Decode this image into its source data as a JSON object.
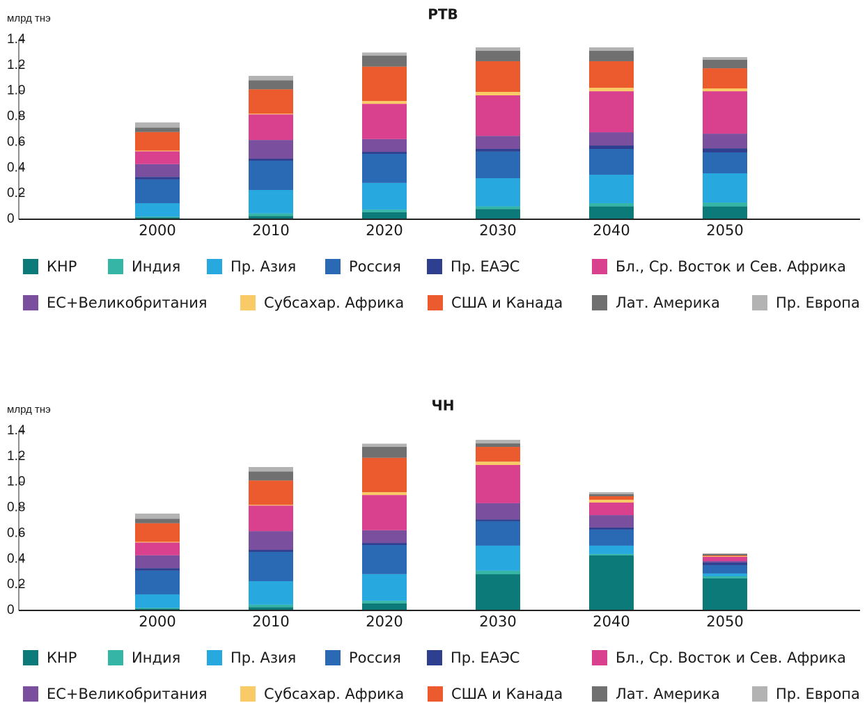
{
  "chart_data": [
    {
      "type": "bar",
      "stacked": true,
      "title": "РТВ",
      "y_label": "млрд тнэ",
      "categories": [
        "2000",
        "2010",
        "2020",
        "2030",
        "2040",
        "2050"
      ],
      "ylim": [
        0,
        1.4
      ],
      "yticks": [
        0,
        0.2,
        0.4,
        0.6,
        0.8,
        {
          "value": 1,
          "label": "1.0"
        },
        1.2,
        1.4
      ],
      "series": [
        {
          "name": "КНР",
          "color": "#0b7a78",
          "values": [
            0.015,
            0.025,
            0.055,
            0.08,
            0.1,
            0.1
          ]
        },
        {
          "name": "Индия",
          "color": "#35b5a6",
          "values": [
            0.005,
            0.02,
            0.02,
            0.02,
            0.025,
            0.03
          ]
        },
        {
          "name": "Пр. Азия",
          "color": "#27a8de",
          "values": [
            0.105,
            0.183,
            0.208,
            0.22,
            0.222,
            0.228
          ]
        },
        {
          "name": "Россия",
          "color": "#2a6ab5",
          "values": [
            0.185,
            0.228,
            0.227,
            0.207,
            0.201,
            0.163
          ]
        },
        {
          "name": "Пр. ЕАЭС",
          "color": "#2e3f8f",
          "values": [
            0.02,
            0.016,
            0.016,
            0.021,
            0.027,
            0.032
          ]
        },
        {
          "name": "Бл., Ср. Восток и Сев. Африка",
          "color": "#d9418f",
          "values": [
            0.1,
            0.2,
            0.275,
            0.316,
            0.32,
            0.331
          ]
        },
        {
          "name": "ЕС+Великобритания",
          "color": "#7a4f9e",
          "values": [
            0.1,
            0.146,
            0.099,
            0.102,
            0.103,
            0.114
          ]
        },
        {
          "name": "Субсахар. Африка",
          "color": "#f9cb67",
          "values": [
            0.005,
            0.005,
            0.022,
            0.027,
            0.027,
            0.022
          ]
        },
        {
          "name": "США и Канада",
          "color": "#ec5b2e",
          "values": [
            0.145,
            0.19,
            0.268,
            0.239,
            0.207,
            0.157
          ]
        },
        {
          "name": "Лат. Америка",
          "color": "#707070",
          "values": [
            0.035,
            0.07,
            0.085,
            0.081,
            0.081,
            0.066
          ]
        },
        {
          "name": "Пр. Европа",
          "color": "#b3b3b3",
          "values": [
            0.04,
            0.035,
            0.025,
            0.027,
            0.027,
            0.021
          ]
        }
      ]
    },
    {
      "type": "bar",
      "stacked": true,
      "title": "ЧН",
      "y_label": "млрд тнэ",
      "categories": [
        "2000",
        "2010",
        "2020",
        "2030",
        "2040",
        "2050"
      ],
      "ylim": [
        0,
        1.4
      ],
      "yticks": [
        0,
        0.2,
        0.4,
        0.6,
        0.8,
        {
          "value": 1,
          "label": "1.0"
        },
        1.2,
        1.4
      ],
      "series": [
        {
          "name": "КНР",
          "color": "#0b7a78",
          "values": [
            0.015,
            0.025,
            0.055,
            0.282,
            0.429,
            0.25
          ]
        },
        {
          "name": "Индия",
          "color": "#35b5a6",
          "values": [
            0.005,
            0.02,
            0.02,
            0.028,
            0.011,
            0.016
          ]
        },
        {
          "name": "Пр. Азия",
          "color": "#27a8de",
          "values": [
            0.105,
            0.183,
            0.208,
            0.195,
            0.065,
            0.022
          ]
        },
        {
          "name": "Россия",
          "color": "#2a6ab5",
          "values": [
            0.185,
            0.228,
            0.227,
            0.19,
            0.125,
            0.065
          ]
        },
        {
          "name": "Пр. ЕАЭС",
          "color": "#2e3f8f",
          "values": [
            0.02,
            0.016,
            0.016,
            0.015,
            0.016,
            0.021
          ]
        },
        {
          "name": "Бл., Ср. Восток и Сев. Африка",
          "color": "#d9418f",
          "values": [
            0.1,
            0.2,
            0.275,
            0.298,
            0.098,
            0.033
          ]
        },
        {
          "name": "ЕС+Великобритания",
          "color": "#7a4f9e",
          "values": [
            0.1,
            0.146,
            0.099,
            0.126,
            0.097,
            0.011
          ]
        },
        {
          "name": "Субсахар. Африка",
          "color": "#f9cb67",
          "values": [
            0.005,
            0.005,
            0.022,
            0.026,
            0.022,
            0.005
          ]
        },
        {
          "name": "США и Канада",
          "color": "#ec5b2e",
          "values": [
            0.145,
            0.19,
            0.268,
            0.115,
            0.027,
            0.006
          ]
        },
        {
          "name": "Лат. Америка",
          "color": "#707070",
          "values": [
            0.035,
            0.07,
            0.085,
            0.027,
            0.016,
            0.011
          ]
        },
        {
          "name": "Пр. Европа",
          "color": "#b3b3b3",
          "values": [
            0.04,
            0.035,
            0.025,
            0.028,
            0.016,
            0.005
          ]
        }
      ]
    }
  ]
}
